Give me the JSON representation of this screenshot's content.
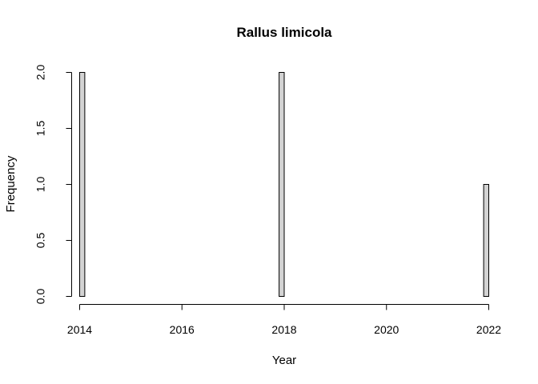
{
  "chart_data": {
    "type": "bar",
    "title": "Rallus limicola",
    "xlabel": "Year",
    "ylabel": "Frequency",
    "xlim": [
      2014,
      2022
    ],
    "ylim": [
      0,
      2
    ],
    "x_ticks": [
      2014,
      2016,
      2018,
      2020,
      2022
    ],
    "x_tick_labels": [
      "2014",
      "2016",
      "2018",
      "2020",
      "2022"
    ],
    "y_ticks": [
      0,
      0.5,
      1,
      1.5,
      2
    ],
    "y_tick_labels": [
      "0.0",
      "0.5",
      "1.0",
      "1.5",
      "2.0"
    ],
    "bin_width": 0.1,
    "bins": [
      {
        "start": 2014.0,
        "end": 2014.1,
        "value": 2
      },
      {
        "start": 2017.9,
        "end": 2018.0,
        "value": 2
      },
      {
        "start": 2021.9,
        "end": 2022.0,
        "value": 1
      }
    ],
    "bar_fill": "#d3d3d3",
    "bar_stroke": "#000000",
    "grid": false
  }
}
